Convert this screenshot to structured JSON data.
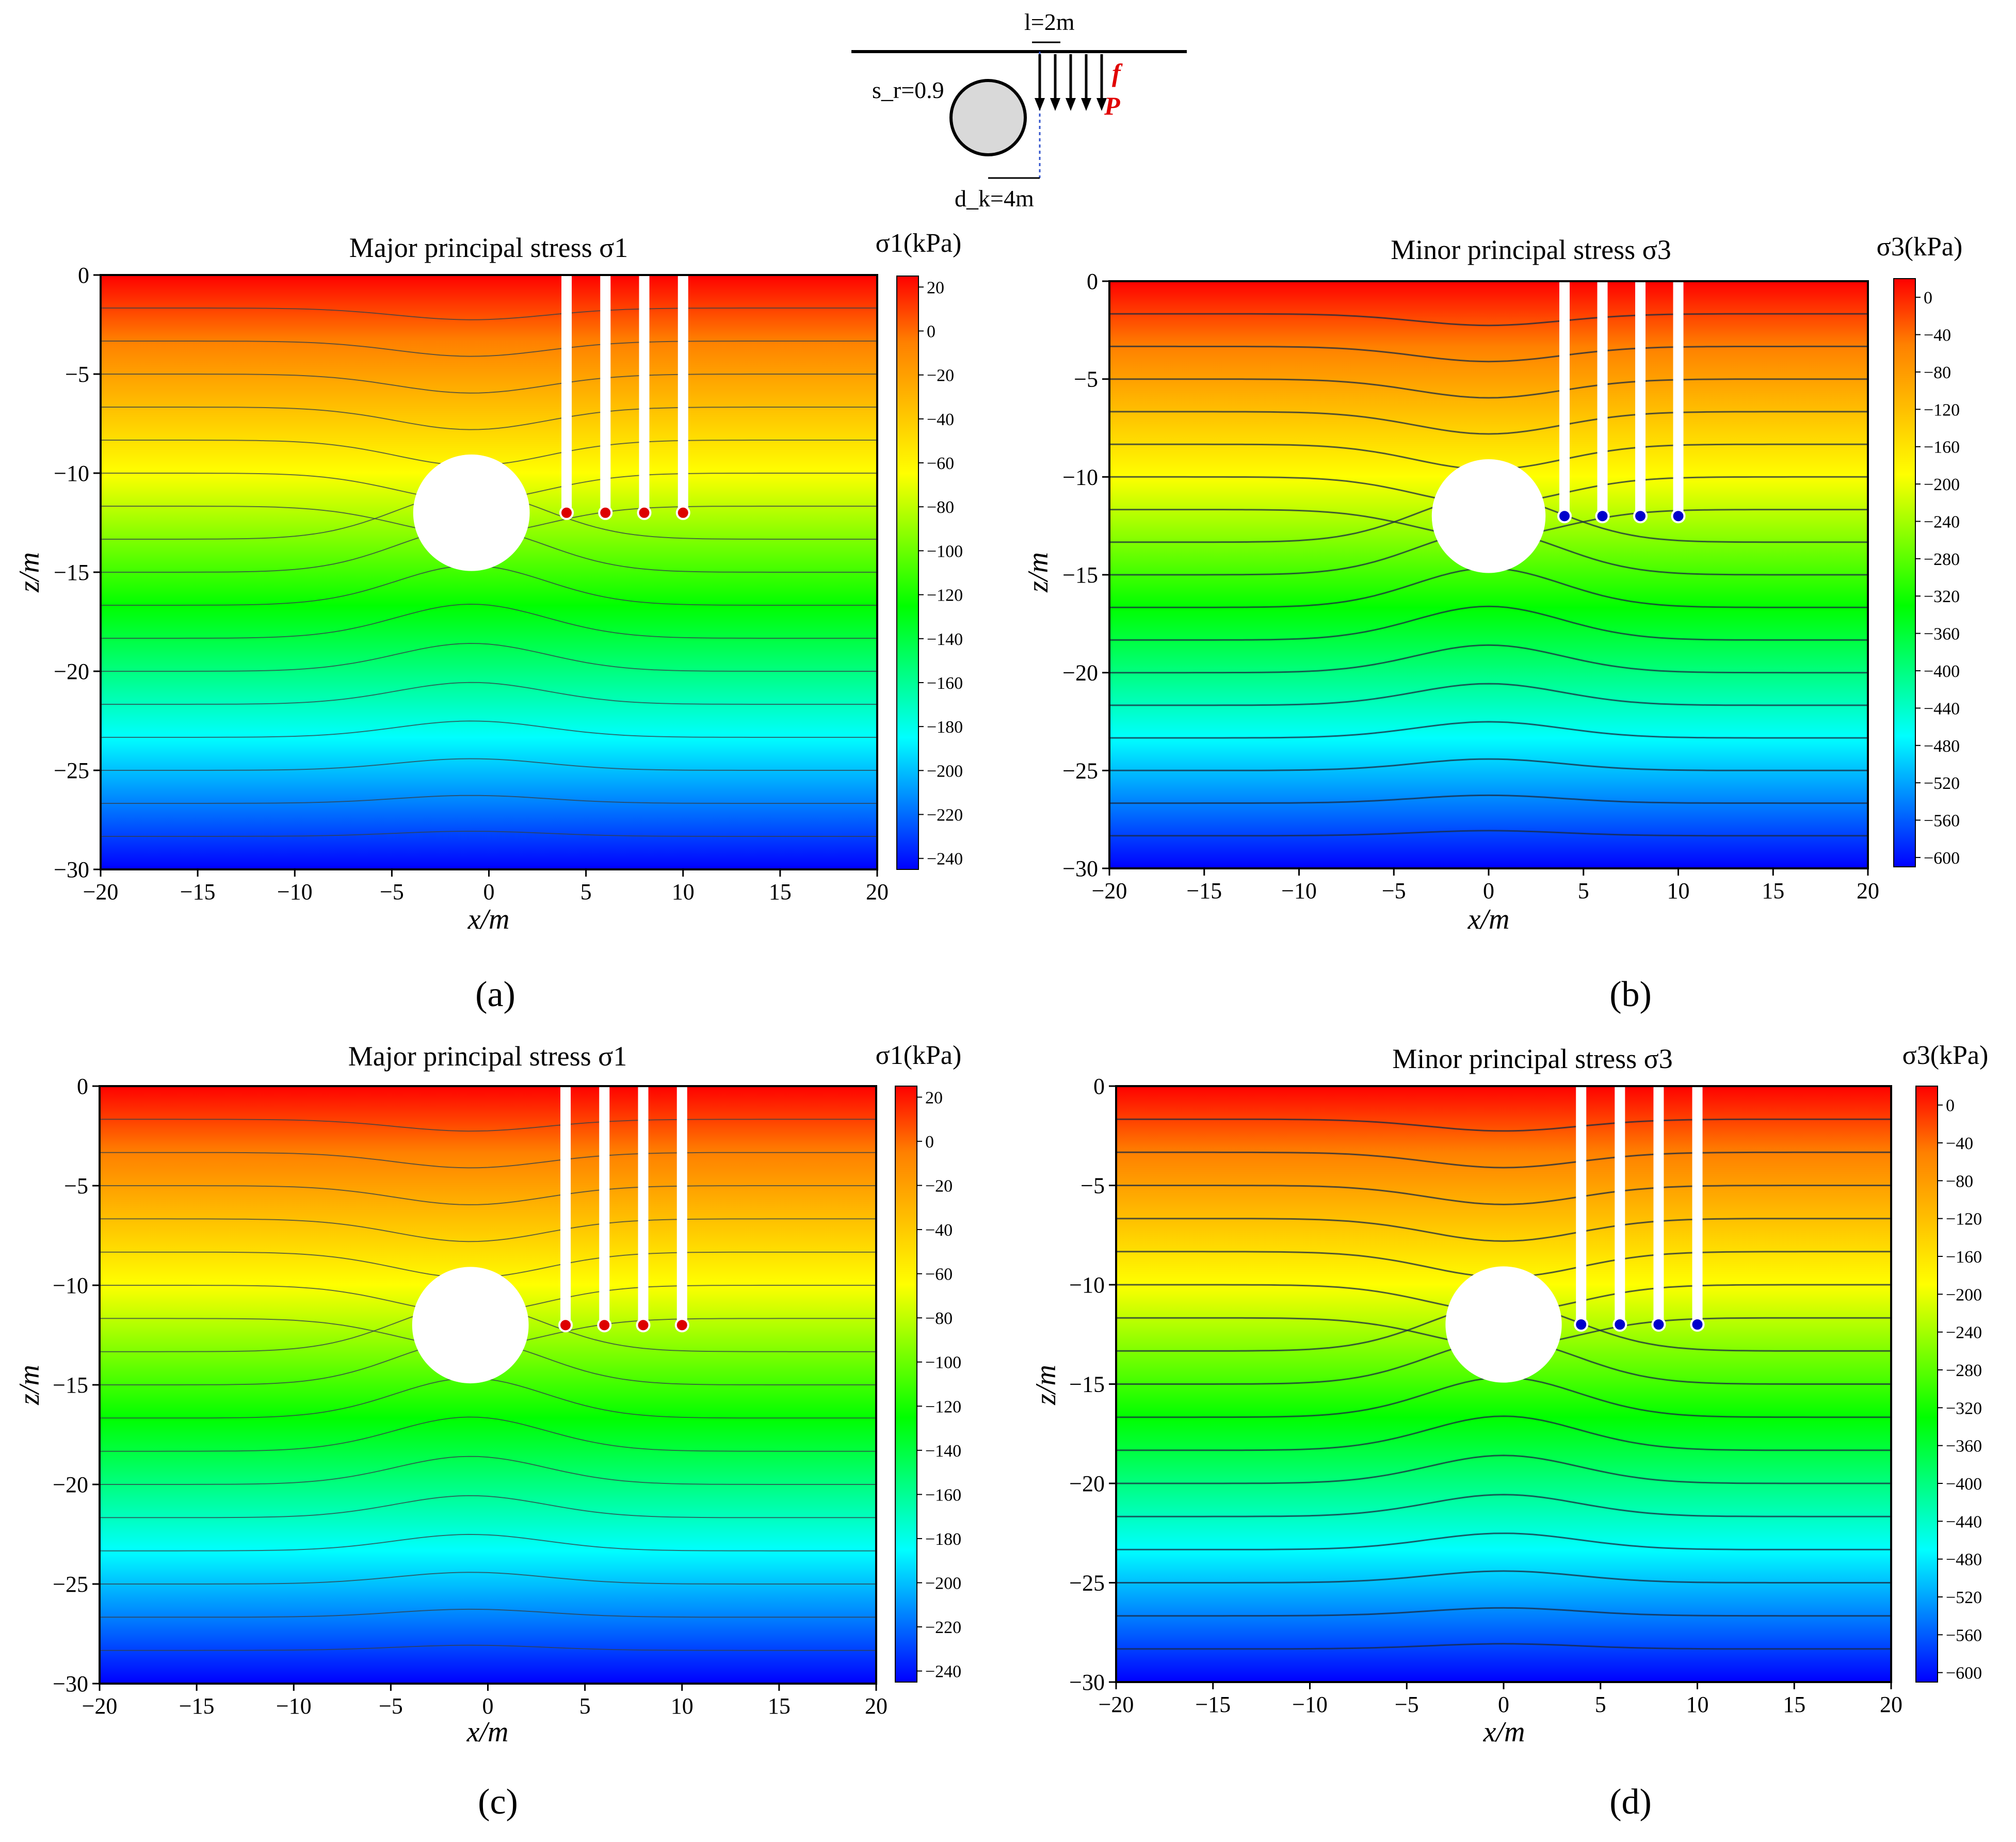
{
  "schematic": {
    "l_label": "l=2m",
    "sr_label": "s_r=0.9",
    "f_label": "f",
    "P_label": "P",
    "dk_label": "d_k=4m",
    "fill_color": "#d9d9d9",
    "load_color": "#e00000"
  },
  "colormap": [
    "#0000ff",
    "#0080ff",
    "#00ffff",
    "#00ff80",
    "#00ff00",
    "#80ff00",
    "#ffff00",
    "#ffbf00",
    "#ff8000",
    "#ff0000"
  ],
  "chart_data": [
    {
      "panel": "a",
      "type": "heatmap",
      "title": "Major principal stress σ1",
      "xlabel": "x/m",
      "ylabel": "z/m",
      "xlim": [
        -20,
        20
      ],
      "ylim": [
        -30,
        0
      ],
      "xticks": [
        -20,
        -15,
        -10,
        -5,
        0,
        5,
        10,
        15,
        20
      ],
      "yticks": [
        0,
        -5,
        -10,
        -15,
        -20,
        -25,
        -30
      ],
      "colorbar_label": "σ1(kPa)",
      "colorbar_range": [
        -245,
        25
      ],
      "colorbar_ticks": [
        20,
        0,
        -20,
        -40,
        -60,
        -80,
        -100,
        -120,
        -140,
        -160,
        -180,
        -200,
        -220,
        -240
      ],
      "tunnel": {
        "x": -0.9,
        "z": -12,
        "r": 3
      },
      "anchors_x": [
        4,
        6,
        8,
        10
      ],
      "anchor_depth": -12
    },
    {
      "panel": "b",
      "type": "heatmap",
      "title": "Minor principal stress σ3",
      "xlabel": "x/m",
      "ylabel": "z/m",
      "xlim": [
        -20,
        20
      ],
      "ylim": [
        -30,
        0
      ],
      "xticks": [
        -20,
        -15,
        -10,
        -5,
        0,
        5,
        10,
        15,
        20
      ],
      "yticks": [
        0,
        -5,
        -10,
        -15,
        -20,
        -25,
        -30
      ],
      "colorbar_label": "σ3(kPa)",
      "colorbar_range": [
        -610,
        20
      ],
      "colorbar_ticks": [
        0,
        -40,
        -80,
        -120,
        -160,
        -200,
        -240,
        -280,
        -320,
        -360,
        -400,
        -440,
        -480,
        -520,
        -560,
        -600
      ],
      "tunnel": {
        "x": 0,
        "z": -12,
        "r": 3
      },
      "anchors_x": [
        4,
        6,
        8,
        10
      ],
      "anchor_depth": -12
    },
    {
      "panel": "c",
      "type": "heatmap",
      "title": "Major principal stress σ1",
      "xlabel": "x/m",
      "ylabel": "z/m",
      "xlim": [
        -20,
        20
      ],
      "ylim": [
        -30,
        0
      ],
      "xticks": [
        -20,
        -15,
        -10,
        -5,
        0,
        5,
        10,
        15,
        20
      ],
      "yticks": [
        0,
        -5,
        -10,
        -15,
        -20,
        -25,
        -30
      ],
      "colorbar_label": "σ1(kPa)",
      "colorbar_range": [
        -245,
        25
      ],
      "colorbar_ticks": [
        20,
        0,
        -20,
        -40,
        -60,
        -80,
        -100,
        -120,
        -140,
        -160,
        -180,
        -200,
        -220,
        -240
      ],
      "tunnel": {
        "x": -0.9,
        "z": -12,
        "r": 3
      },
      "anchors_x": [
        4,
        6,
        8,
        10
      ],
      "anchor_depth": -12
    },
    {
      "panel": "d",
      "type": "heatmap",
      "title": "Minor principal stress σ3",
      "xlabel": "x/m",
      "ylabel": "z/m",
      "xlim": [
        -20,
        20
      ],
      "ylim": [
        -30,
        0
      ],
      "xticks": [
        -20,
        -15,
        -10,
        -5,
        0,
        5,
        10,
        15,
        20
      ],
      "yticks": [
        0,
        -5,
        -10,
        -15,
        -20,
        -25,
        -30
      ],
      "colorbar_label": "σ3(kPa)",
      "colorbar_range": [
        -610,
        20
      ],
      "colorbar_ticks": [
        0,
        -40,
        -80,
        -120,
        -160,
        -200,
        -240,
        -280,
        -320,
        -360,
        -400,
        -440,
        -480,
        -520,
        -560,
        -600
      ],
      "tunnel": {
        "x": 0,
        "z": -12,
        "r": 3
      },
      "anchors_x": [
        4,
        6,
        8,
        10
      ],
      "anchor_depth": -12
    }
  ],
  "captions": [
    "(a)",
    "(b)",
    "(c)",
    "(d)"
  ]
}
